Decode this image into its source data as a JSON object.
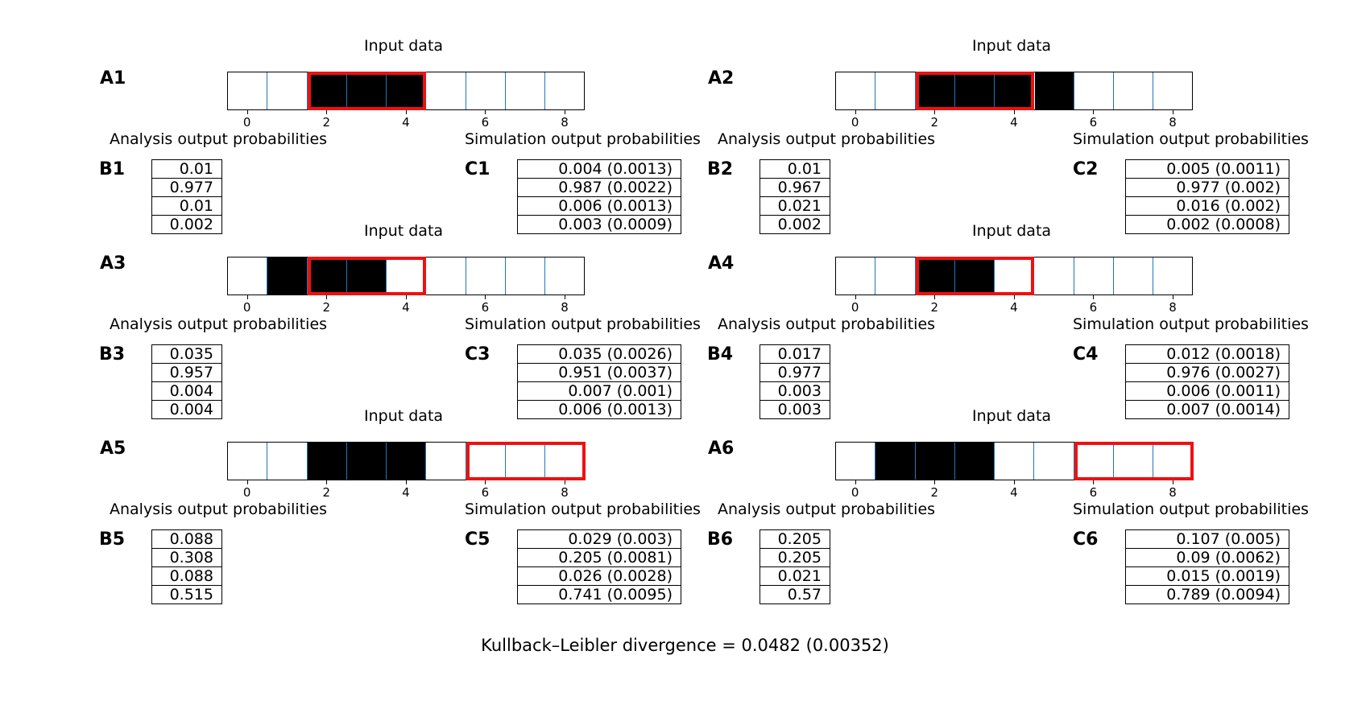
{
  "footer": {
    "text": "Kullback–Leibler divergence = 0.0482 (0.00352)"
  },
  "captions": {
    "input": "Input data",
    "analysis": "Analysis output probabilities",
    "simulation": "Simulation output probabilities"
  },
  "colors": {
    "cell_fill": "#000000",
    "grid": "#1f77b4",
    "highlight": "#ee1111"
  },
  "strip_axis": {
    "ticks": [
      "0",
      "2",
      "4",
      "6",
      "8"
    ],
    "cells": 9
  },
  "panels": [
    {
      "a": "A1",
      "b": "B1",
      "c": "C1",
      "black": [
        2,
        3,
        4
      ],
      "highlight": [
        2,
        4
      ],
      "analysis": [
        "0.01",
        "0.977",
        "0.01",
        "0.002"
      ],
      "simulation": [
        "0.004 (0.0013)",
        "0.987 (0.0022)",
        "0.006 (0.0013)",
        "0.003 (0.0009)"
      ]
    },
    {
      "a": "A2",
      "b": "B2",
      "c": "C2",
      "black": [
        2,
        3,
        4,
        5
      ],
      "highlight": [
        2,
        4
      ],
      "analysis": [
        "0.01",
        "0.967",
        "0.021",
        "0.002"
      ],
      "simulation": [
        "0.005 (0.0011)",
        "0.977 (0.002)",
        "0.016 (0.002)",
        "0.002 (0.0008)"
      ]
    },
    {
      "a": "A3",
      "b": "B3",
      "c": "C3",
      "black": [
        1,
        2,
        3
      ],
      "highlight": [
        2,
        4
      ],
      "analysis": [
        "0.035",
        "0.957",
        "0.004",
        "0.004"
      ],
      "simulation": [
        "0.035 (0.0026)",
        "0.951 (0.0037)",
        "0.007 (0.001)",
        "0.006 (0.0013)"
      ]
    },
    {
      "a": "A4",
      "b": "B4",
      "c": "C4",
      "black": [
        2,
        3
      ],
      "highlight": [
        2,
        4
      ],
      "analysis": [
        "0.017",
        "0.977",
        "0.003",
        "0.003"
      ],
      "simulation": [
        "0.012 (0.0018)",
        "0.976 (0.0027)",
        "0.006 (0.0011)",
        "0.007 (0.0014)"
      ]
    },
    {
      "a": "A5",
      "b": "B5",
      "c": "C5",
      "black": [
        2,
        3,
        4
      ],
      "highlight": [
        6,
        8
      ],
      "analysis": [
        "0.088",
        "0.308",
        "0.088",
        "0.515"
      ],
      "simulation": [
        "0.029 (0.003)",
        "0.205 (0.0081)",
        "0.026 (0.0028)",
        "0.741 (0.0095)"
      ]
    },
    {
      "a": "A6",
      "b": "B6",
      "c": "C6",
      "black": [
        1,
        2,
        3
      ],
      "highlight": [
        6,
        8
      ],
      "analysis": [
        "0.205",
        "0.205",
        "0.021",
        "0.57"
      ],
      "simulation": [
        "0.107 (0.005)",
        "0.09 (0.0062)",
        "0.015 (0.0019)",
        "0.789 (0.0094)"
      ]
    }
  ]
}
